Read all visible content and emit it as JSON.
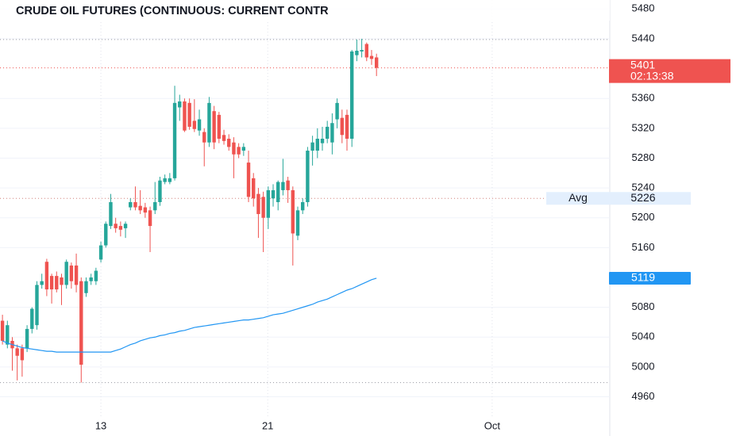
{
  "chart_data": {
    "type": "candlestick",
    "title": "CRUDE OIL FUTURES (CONTINUOUS: CURRENT CONTR",
    "x": [
      0,
      1,
      2,
      3,
      4,
      5,
      6,
      7,
      8,
      9,
      10,
      11,
      12,
      13,
      14,
      15,
      16,
      17,
      18,
      19,
      20,
      21,
      22,
      23,
      24,
      25,
      26,
      27,
      28,
      29,
      30,
      31,
      32,
      33,
      34,
      35,
      36,
      37,
      38,
      39,
      40,
      41,
      42,
      43,
      44,
      45,
      46,
      47,
      48,
      49,
      50,
      51,
      52,
      53,
      54,
      55,
      56,
      57,
      58,
      59,
      60,
      61,
      62,
      63,
      64,
      65,
      66,
      67,
      68,
      69,
      70,
      71,
      72,
      73,
      74,
      75,
      76
    ],
    "open": [
      5062,
      5030,
      5035,
      5025,
      5025,
      5025,
      5051,
      5056,
      5110,
      5141,
      5122,
      5122,
      5120,
      5110,
      5136,
      5136,
      5115,
      5099,
      5115,
      5115,
      5144,
      5163,
      5189,
      5192,
      5189,
      5186,
      5214,
      5221,
      5216,
      5214,
      5210,
      5210,
      5221,
      5248,
      5248,
      5253,
      5348,
      5356,
      5354,
      5330,
      5317,
      5315,
      5301,
      5343,
      5338,
      5311,
      5306,
      5301,
      5295,
      5290,
      5274,
      5253,
      5232,
      5228,
      5200,
      5226,
      5221,
      5237,
      5250,
      5237,
      5176,
      5210,
      5221,
      5290,
      5290,
      5300,
      5306,
      5301,
      5332,
      5334,
      5338,
      5306,
      5418,
      5423,
      5433,
      5417,
      5415
    ],
    "high": [
      5070,
      5062,
      5040,
      5030,
      5030,
      5056,
      5080,
      5115,
      5125,
      5145,
      5125,
      5128,
      5125,
      5144,
      5140,
      5152,
      5120,
      5120,
      5125,
      5133,
      5168,
      5195,
      5232,
      5200,
      5195,
      5195,
      5226,
      5242,
      5237,
      5220,
      5215,
      5248,
      5255,
      5258,
      5260,
      5377,
      5365,
      5360,
      5360,
      5359,
      5345,
      5320,
      5362,
      5350,
      5342,
      5318,
      5312,
      5308,
      5300,
      5300,
      5290,
      5260,
      5240,
      5235,
      5242,
      5245,
      5250,
      5279,
      5255,
      5242,
      5215,
      5226,
      5295,
      5310,
      5320,
      5322,
      5330,
      5340,
      5360,
      5345,
      5345,
      5425,
      5439,
      5440,
      5435,
      5425,
      5420
    ],
    "low": [
      5030,
      5025,
      4995,
      4982,
      4987,
      5020,
      5045,
      5050,
      5105,
      5095,
      5085,
      5100,
      5083,
      5105,
      5105,
      5100,
      4979,
      5094,
      5110,
      5110,
      5140,
      5160,
      5185,
      5180,
      5175,
      5173,
      5210,
      5210,
      5205,
      5200,
      5154,
      5205,
      5216,
      5245,
      5245,
      5250,
      5330,
      5315,
      5318,
      5315,
      5310,
      5269,
      5295,
      5292,
      5300,
      5298,
      5290,
      5253,
      5280,
      5283,
      5221,
      5215,
      5173,
      5154,
      5185,
      5215,
      5210,
      5230,
      5220,
      5136,
      5170,
      5205,
      5215,
      5270,
      5280,
      5290,
      5300,
      5285,
      5320,
      5300,
      5290,
      5295,
      5410,
      5415,
      5410,
      5405,
      5390
    ],
    "close": [
      5035,
      5056,
      5025,
      5015,
      5009,
      5051,
      5078,
      5110,
      5115,
      5104,
      5104,
      5104,
      5110,
      5141,
      5115,
      5110,
      5003,
      5115,
      5120,
      5129,
      5163,
      5192,
      5221,
      5186,
      5184,
      5192,
      5221,
      5214,
      5210,
      5207,
      5189,
      5221,
      5250,
      5253,
      5253,
      5354,
      5356,
      5317,
      5322,
      5319,
      5332,
      5301,
      5354,
      5301,
      5306,
      5303,
      5295,
      5285,
      5285,
      5295,
      5228,
      5226,
      5205,
      5200,
      5237,
      5237,
      5248,
      5248,
      5237,
      5179,
      5210,
      5221,
      5290,
      5301,
      5306,
      5306,
      5322,
      5327,
      5354,
      5311,
      5306,
      5423,
      5424,
      5425,
      5415,
      5413,
      5401
    ],
    "up_color": "#26a69a",
    "down_color": "#ef5350",
    "moving_average": {
      "color": "#2196f3",
      "values": [
        5035,
        5032,
        5030,
        5028,
        5026,
        5025,
        5024,
        5023,
        5022,
        5021,
        5021,
        5020,
        5020,
        5020,
        5020,
        5020,
        5020,
        5020,
        5020,
        5020,
        5020,
        5020,
        5020,
        5022,
        5024,
        5027,
        5030,
        5032,
        5035,
        5037,
        5039,
        5040,
        5042,
        5043,
        5045,
        5046,
        5048,
        5049,
        5051,
        5053,
        5054,
        5055,
        5056,
        5057,
        5058,
        5059,
        5060,
        5061,
        5062,
        5063,
        5063,
        5064,
        5065,
        5066,
        5068,
        5070,
        5071,
        5072,
        5074,
        5076,
        5078,
        5080,
        5082,
        5084,
        5087,
        5089,
        5091,
        5094,
        5097,
        5100,
        5103,
        5105,
        5108,
        5111,
        5114,
        5117,
        5119
      ]
    },
    "countdown": "02:13:38",
    "avg": {
      "label": "Avg",
      "value": 5226
    },
    "reference_lines": [
      5439,
      4979
    ],
    "xlim": [
      -0.5,
      123.4
    ],
    "xticks": [
      {
        "value": 20,
        "label": "13"
      },
      {
        "value": 53.9,
        "label": "21"
      },
      {
        "value": 99.5,
        "label": "Oct"
      }
    ],
    "ylim": [
      4934,
      5492
    ],
    "yticks": [
      4960,
      5000,
      5040,
      5080,
      5160,
      5200,
      5240,
      5280,
      5320,
      5360,
      5440,
      5480
    ],
    "grid": true
  }
}
